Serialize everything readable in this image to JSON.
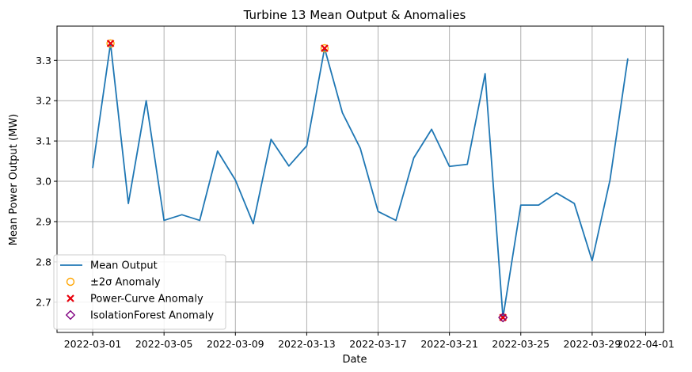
{
  "chart_data": {
    "type": "line",
    "title": "Turbine 13 Mean Output & Anomalies",
    "xlabel": "Date",
    "ylabel": "Mean Power Output (MW)",
    "grid": true,
    "legend_position": "lower-left",
    "xlim": [
      "2022-02-27",
      "2022-04-02"
    ],
    "ylim": [
      2.625,
      3.385
    ],
    "x_ticks": [
      "2022-03-01",
      "2022-03-05",
      "2022-03-09",
      "2022-03-13",
      "2022-03-17",
      "2022-03-21",
      "2022-03-25",
      "2022-03-29",
      "2022-04-01"
    ],
    "y_ticks": [
      2.7,
      2.8,
      2.9,
      3.0,
      3.1,
      3.2,
      3.3
    ],
    "y_tick_labels": [
      "2.7",
      "2.8",
      "2.9",
      "3.0",
      "3.1",
      "3.2",
      "3.3"
    ],
    "series": [
      {
        "name": "Mean Output",
        "style": "line",
        "color": "#1f77b4",
        "x": [
          "2022-03-01",
          "2022-03-02",
          "2022-03-03",
          "2022-03-04",
          "2022-03-05",
          "2022-03-06",
          "2022-03-07",
          "2022-03-08",
          "2022-03-09",
          "2022-03-10",
          "2022-03-11",
          "2022-03-12",
          "2022-03-13",
          "2022-03-14",
          "2022-03-15",
          "2022-03-16",
          "2022-03-17",
          "2022-03-18",
          "2022-03-19",
          "2022-03-20",
          "2022-03-21",
          "2022-03-22",
          "2022-03-23",
          "2022-03-24",
          "2022-03-25",
          "2022-03-26",
          "2022-03-27",
          "2022-03-28",
          "2022-03-29",
          "2022-03-30",
          "2022-03-31"
        ],
        "y": [
          3.033,
          3.342,
          2.945,
          3.2,
          2.903,
          2.917,
          2.903,
          3.075,
          3.003,
          2.895,
          3.104,
          3.038,
          3.088,
          3.33,
          3.17,
          3.082,
          2.925,
          2.903,
          3.058,
          3.129,
          3.037,
          3.042,
          3.267,
          2.662,
          2.941,
          2.941,
          2.971,
          2.945,
          2.803,
          3.003,
          3.305
        ]
      },
      {
        "name": "±2σ Anomaly",
        "style": "hollow-circle",
        "color": "#ffa500",
        "x": [
          "2022-03-02",
          "2022-03-14",
          "2022-03-24"
        ],
        "y": [
          3.342,
          3.33,
          2.662
        ]
      },
      {
        "name": "Power-Curve Anomaly",
        "style": "x",
        "color": "#e8000b",
        "x": [
          "2022-03-02",
          "2022-03-14",
          "2022-03-24"
        ],
        "y": [
          3.342,
          3.33,
          2.662
        ]
      },
      {
        "name": "IsolationForest Anomaly",
        "style": "hollow-diamond",
        "color": "#800080",
        "x": [
          "2022-03-24"
        ],
        "y": [
          2.662
        ]
      }
    ]
  }
}
